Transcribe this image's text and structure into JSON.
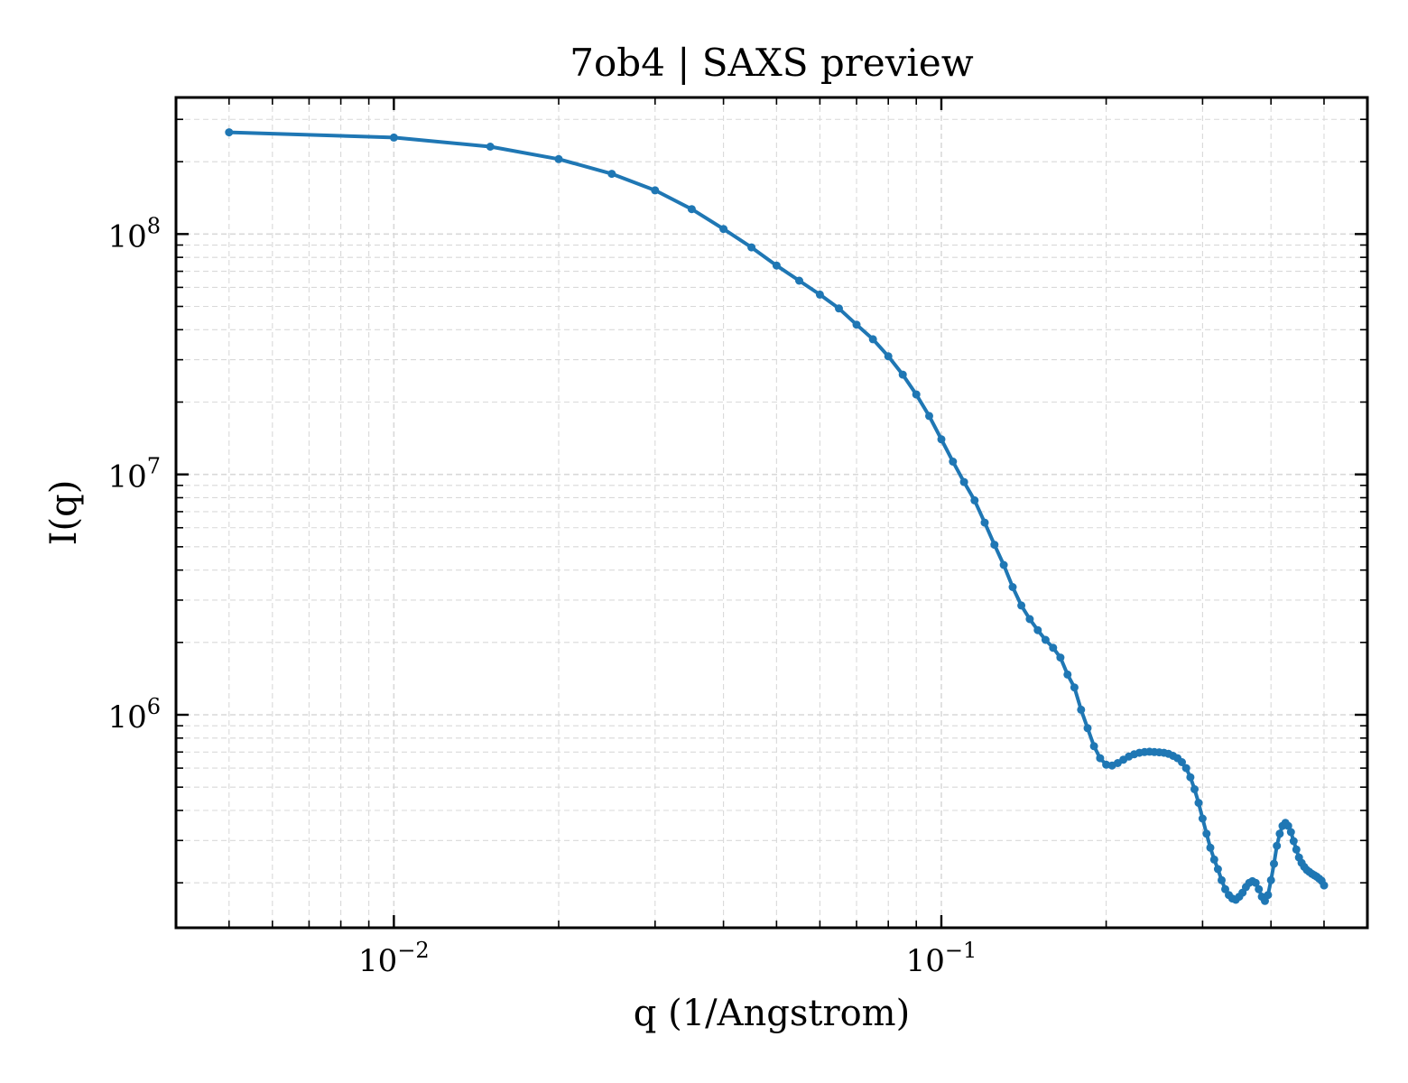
{
  "chart_data": {
    "type": "line",
    "title": "7ob4 | SAXS preview",
    "xlabel": "q (1/Angstrom)",
    "ylabel": "I(q)",
    "xscale": "log",
    "yscale": "log",
    "xlim": [
      0.004,
      0.6
    ],
    "ylim": [
      130000,
      370000000
    ],
    "grid": true,
    "legend": "none",
    "colors": {
      "line": "#1f77b4",
      "grid": "#d9d9d9",
      "axes": "#000000"
    },
    "xticks": [
      {
        "value": 0.01,
        "base": "10",
        "exp": "−2"
      },
      {
        "value": 0.1,
        "base": "10",
        "exp": "−1"
      }
    ],
    "yticks": [
      {
        "value": 1000000,
        "base": "10",
        "exp": "6"
      },
      {
        "value": 10000000,
        "base": "10",
        "exp": "7"
      },
      {
        "value": 100000000,
        "base": "10",
        "exp": "8"
      }
    ],
    "series": [
      {
        "marker": "dot",
        "x": [
          0.005,
          0.01,
          0.015,
          0.02,
          0.025,
          0.03,
          0.035,
          0.04,
          0.045,
          0.05,
          0.055,
          0.06,
          0.065,
          0.07,
          0.075,
          0.08,
          0.085,
          0.09,
          0.095,
          0.1,
          0.105,
          0.11,
          0.115,
          0.12,
          0.125,
          0.13,
          0.135,
          0.14,
          0.145,
          0.15,
          0.155,
          0.16,
          0.165,
          0.17,
          0.175,
          0.18,
          0.185,
          0.19,
          0.195,
          0.2,
          0.205,
          0.21,
          0.215,
          0.22,
          0.225,
          0.23,
          0.235,
          0.24,
          0.245,
          0.25,
          0.255,
          0.26,
          0.265,
          0.27,
          0.275,
          0.28,
          0.285,
          0.29,
          0.295,
          0.3,
          0.305,
          0.31,
          0.315,
          0.32,
          0.325,
          0.33,
          0.335,
          0.34,
          0.345,
          0.35,
          0.355,
          0.36,
          0.365,
          0.37,
          0.375,
          0.38,
          0.385,
          0.39,
          0.395,
          0.4,
          0.405,
          0.41,
          0.415,
          0.42,
          0.425,
          0.43,
          0.435,
          0.44,
          0.445,
          0.45,
          0.455,
          0.46,
          0.465,
          0.47,
          0.475,
          0.48,
          0.485,
          0.49,
          0.495,
          0.5
        ],
        "y": [
          265000000,
          252000000,
          231000000,
          205000000,
          178000000,
          152000000,
          127000000,
          105000000,
          88000000,
          74000000,
          64000000,
          56000000,
          49000000,
          42000000,
          36500000,
          31000000,
          26000000,
          21500000,
          17500000,
          14000000,
          11300000,
          9300000,
          7800000,
          6300000,
          5100000,
          4200000,
          3400000,
          2850000,
          2500000,
          2250000,
          2050000,
          1900000,
          1730000,
          1470000,
          1300000,
          1050000,
          880000,
          740000,
          660000,
          620000,
          615000,
          630000,
          650000,
          670000,
          685000,
          695000,
          700000,
          702000,
          700000,
          698000,
          695000,
          688000,
          675000,
          660000,
          635000,
          600000,
          550000,
          490000,
          430000,
          370000,
          320000,
          280000,
          250000,
          228000,
          205000,
          188000,
          178000,
          172000,
          170000,
          175000,
          182000,
          192000,
          200000,
          203000,
          200000,
          188000,
          175000,
          168000,
          178000,
          205000,
          240000,
          285000,
          320000,
          345000,
          355000,
          345000,
          325000,
          298000,
          275000,
          255000,
          242000,
          233000,
          226000,
          222000,
          218000,
          215000,
          212000,
          208000,
          204000,
          195000
        ]
      }
    ]
  }
}
